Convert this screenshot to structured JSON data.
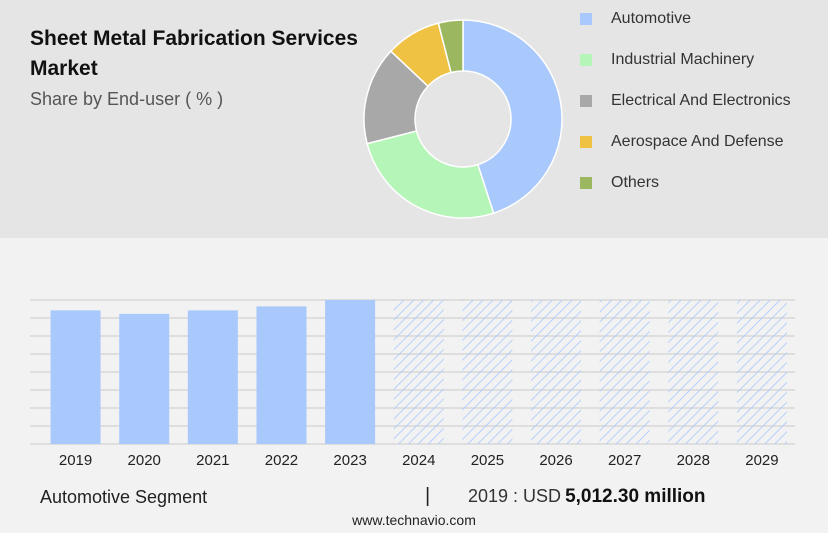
{
  "header": {
    "title": "Sheet Metal Fabrication Services Market",
    "subtitle": "Share by End-user ( % )"
  },
  "footer": {
    "segment_label": "Automotive Segment",
    "separator": "|",
    "year_prefix": "2019 : USD",
    "value_text": "5,012.30 million",
    "website": "www.technavio.com"
  },
  "chart_data": [
    {
      "type": "pie",
      "style": "donut",
      "title": "",
      "labels": [
        "Automotive",
        "Industrial Machinery",
        "Electrical And Electronics",
        "Aerospace And Defense",
        "Others"
      ],
      "values": [
        45,
        26,
        16,
        9,
        4
      ],
      "colors": [
        "#a9c8fc",
        "#b5f5b7",
        "#a8a8a8",
        "#f0c244",
        "#9bb860"
      ],
      "legend_position": "right"
    },
    {
      "type": "bar",
      "title": "",
      "categories": [
        "2019",
        "2020",
        "2021",
        "2022",
        "2023",
        "2024",
        "2025",
        "2026",
        "2027",
        "2028",
        "2029"
      ],
      "values": [
        5012.3,
        4880,
        5010,
        5160,
        5400,
        null,
        null,
        null,
        null,
        null,
        null
      ],
      "forecast_categories": [
        "2024",
        "2025",
        "2026",
        "2027",
        "2028",
        "2029"
      ],
      "ylim": [
        0,
        5400
      ],
      "grid": true,
      "bar_color": "#a9c8fc",
      "forecast_style": "hatched"
    }
  ]
}
